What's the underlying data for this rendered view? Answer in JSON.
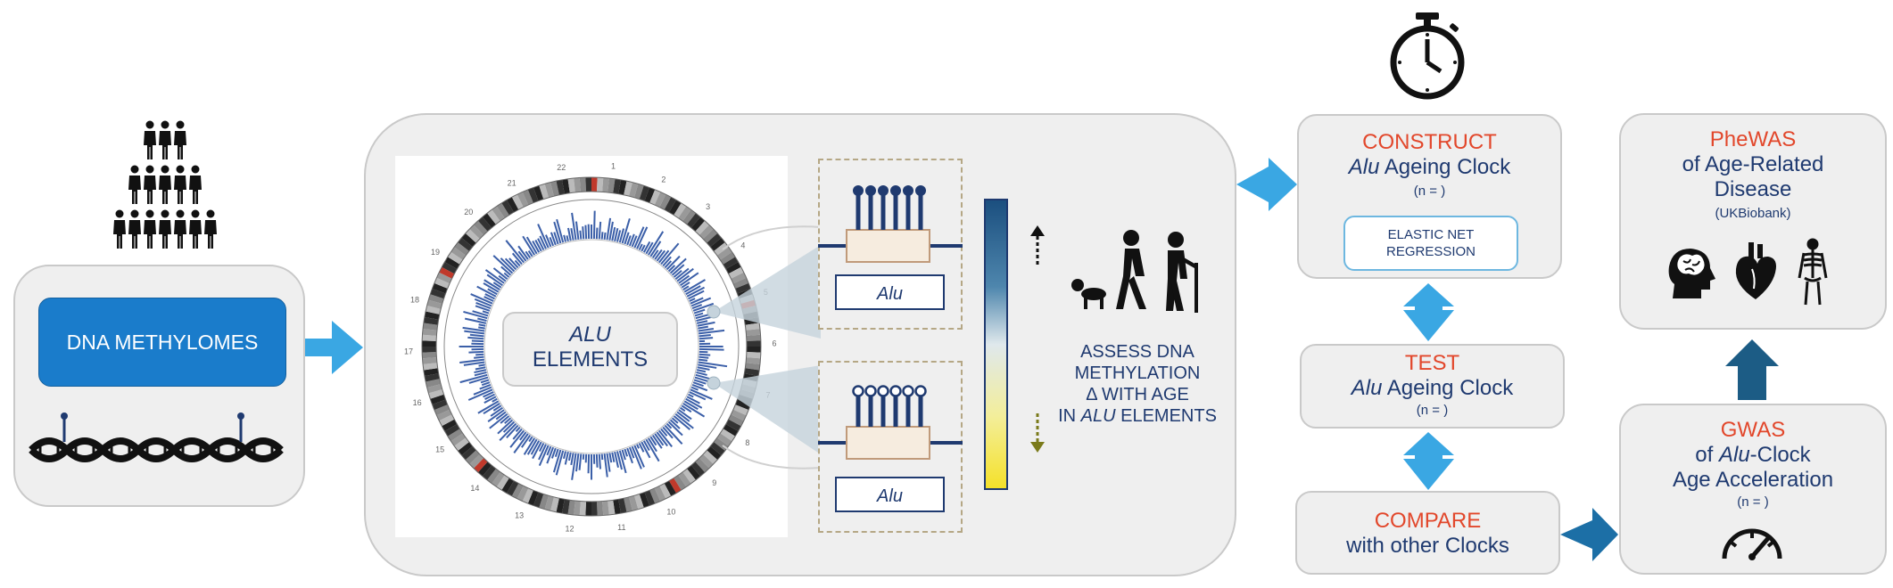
{
  "methylomes": {
    "label": "DNA METHYLOMES"
  },
  "alu_center": {
    "line1": "ALU",
    "line2": "ELEMENTS"
  },
  "alu_tag_top": "Alu",
  "alu_tag_bottom": "Alu",
  "assess": {
    "line1": "ASSESS DNA",
    "line2": "METHYLATION",
    "line3": "Δ WITH AGE",
    "line4_prefix": "IN ",
    "line4_italic": "ALU",
    "line4_suffix": " ELEMENTS"
  },
  "construct": {
    "title": "CONSTRUCT",
    "sub_italic": "Alu",
    "sub_rest": " Ageing Clock",
    "n": "(n = )",
    "method": "ELASTIC NET REGRESSION"
  },
  "test": {
    "title": "TEST",
    "sub_italic": "Alu",
    "sub_rest": " Ageing Clock",
    "n": "(n = )"
  },
  "compare": {
    "title": "COMPARE",
    "sub": "with other Clocks"
  },
  "gwas": {
    "title": "GWAS",
    "sub_prefix": "of ",
    "sub_italic": "Alu",
    "sub_rest": "-Clock",
    "sub2": "Age Acceleration",
    "n": "(n = )"
  },
  "phewas": {
    "title": "PheWAS",
    "line2": "of Age-Related",
    "line3": "Disease",
    "line4": "(UKBiobank)"
  },
  "chromosome_labels": [
    "1",
    "2",
    "3",
    "4",
    "5",
    "6",
    "7",
    "8",
    "9",
    "10",
    "11",
    "12",
    "13",
    "14",
    "15",
    "16",
    "17",
    "18",
    "19",
    "20",
    "21",
    "22"
  ],
  "colors": {
    "red": "#e2472b",
    "navy": "#1f3a70",
    "arrow_blue": "#3aa7e3",
    "arrow_dark": "#1c5c85",
    "box_bg": "#efefef",
    "button_blue": "#1a7ccb"
  },
  "icons": [
    "people-pyramid-icon",
    "dna-helix-icon",
    "stopwatch-icon",
    "aging-people-icon",
    "brain-head-icon",
    "heart-icon",
    "skeleton-icon",
    "speedometer-icon"
  ]
}
